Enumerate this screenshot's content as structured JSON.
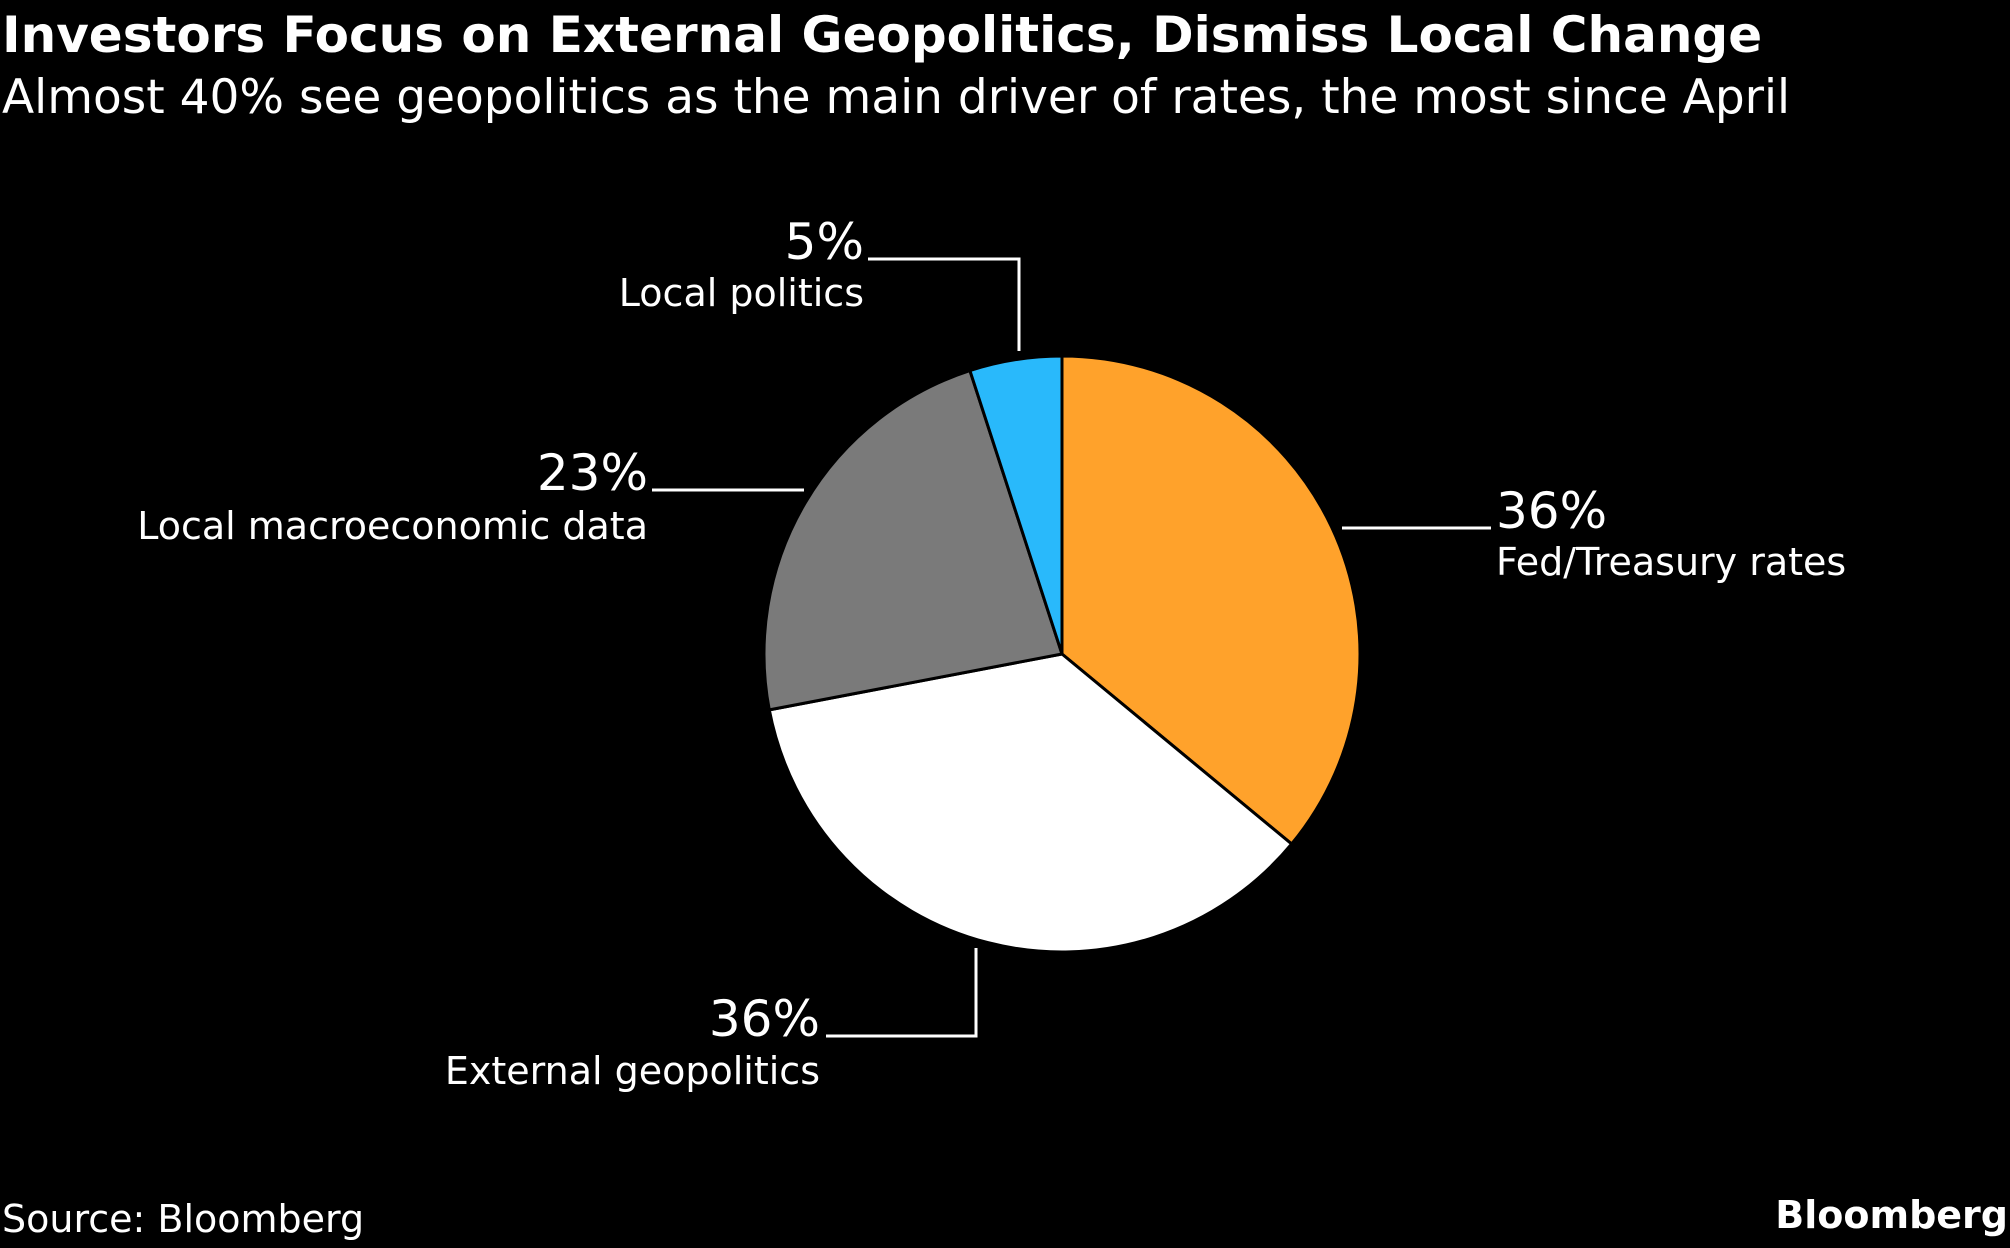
{
  "header": {
    "title": "Investors Focus on External Geopolitics, Dismiss Local Change",
    "subtitle": "Almost 40% see geopolitics as the main driver of rates, the most since April"
  },
  "footer": {
    "source": "Source: Bloomberg",
    "brand": "Bloomberg"
  },
  "chart_data": {
    "type": "pie",
    "title": "Investors Focus on External Geopolitics, Dismiss Local Change",
    "subtitle": "Almost 40% see geopolitics as the main driver of rates, the most since April",
    "slices": [
      {
        "label": "Fed/Treasury rates",
        "value": 36,
        "value_label": "36%",
        "color": "#ffa22b"
      },
      {
        "label": "External geopolitics",
        "value": 36,
        "value_label": "36%",
        "color": "#ffffff"
      },
      {
        "label": "Local macroeconomic data",
        "value": 23,
        "value_label": "23%",
        "color": "#7a7a7a"
      },
      {
        "label": "Local politics",
        "value": 5,
        "value_label": "5%",
        "color": "#29b9fb"
      }
    ],
    "start_angle": "12 o'clock",
    "direction": "clockwise"
  },
  "colors": {
    "background": "#000000",
    "text": "#ffffff",
    "slice_border": "#000000",
    "leader_line": "#ffffff"
  }
}
